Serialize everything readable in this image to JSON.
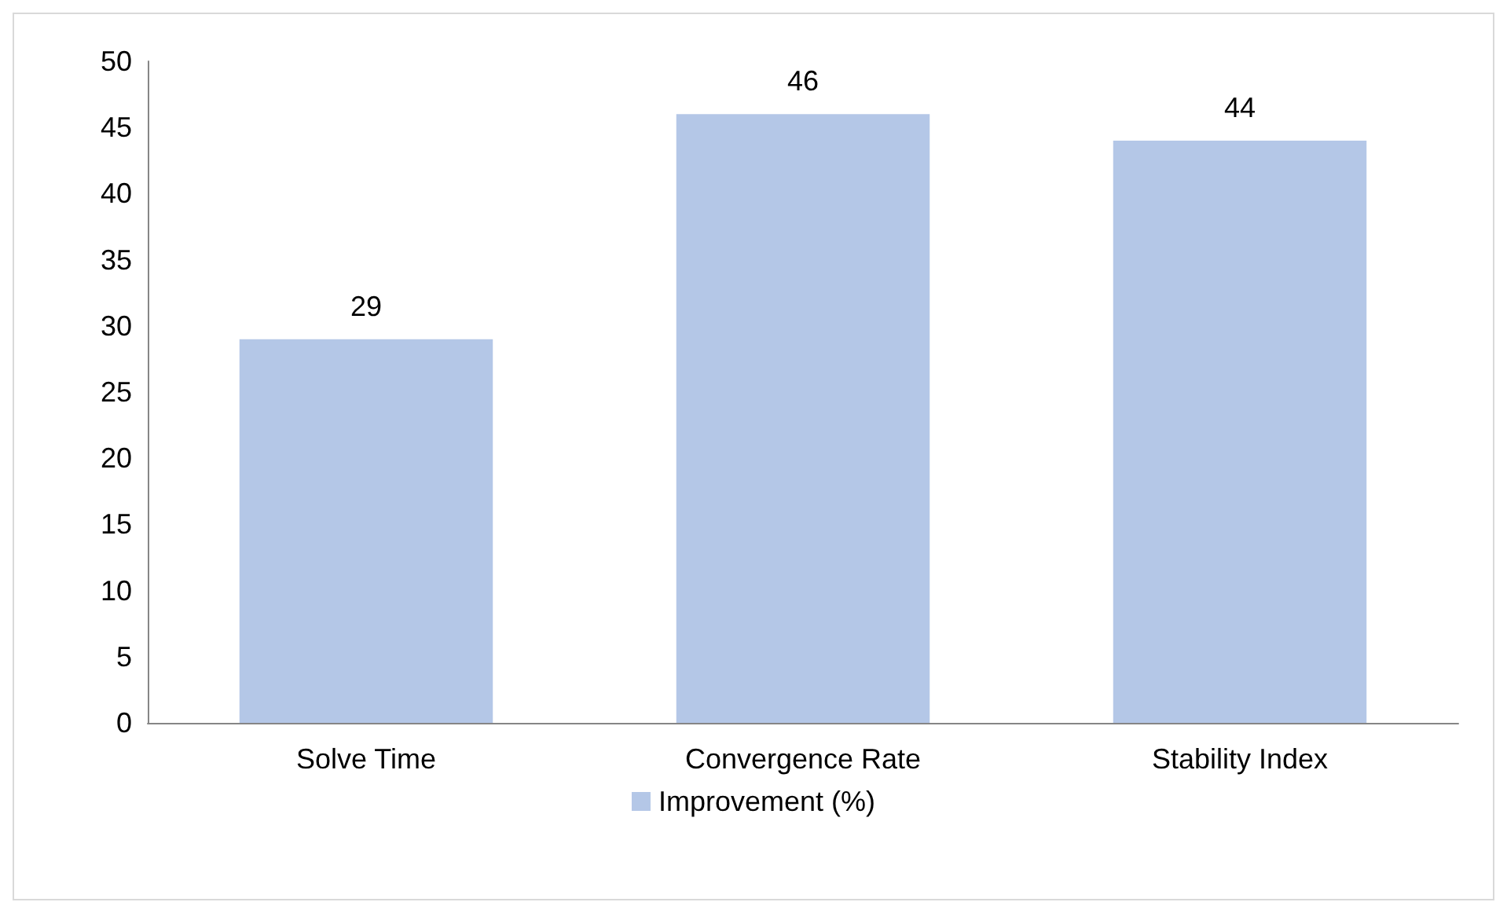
{
  "chart_data": {
    "type": "bar",
    "categories": [
      "Solve Time",
      "Convergence Rate",
      "Stability Index"
    ],
    "series": [
      {
        "name": "Improvement (%)",
        "color": "#b4c7e7",
        "values": [
          29,
          46,
          44
        ]
      }
    ],
    "ylim": [
      0,
      50
    ],
    "yticks": [
      0,
      5,
      10,
      15,
      20,
      25,
      30,
      35,
      40,
      45,
      50
    ],
    "grid": false,
    "legend": "bottom",
    "data_labels": true
  }
}
